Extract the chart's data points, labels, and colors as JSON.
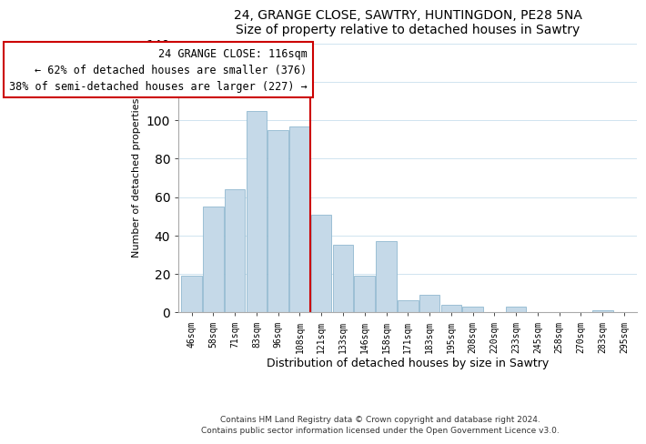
{
  "title": "24, GRANGE CLOSE, SAWTRY, HUNTINGDON, PE28 5NA",
  "subtitle": "Size of property relative to detached houses in Sawtry",
  "xlabel": "Distribution of detached houses by size in Sawtry",
  "ylabel": "Number of detached properties",
  "bar_color": "#c5d9e8",
  "bar_edge_color": "#90b8d0",
  "categories": [
    "46sqm",
    "58sqm",
    "71sqm",
    "83sqm",
    "96sqm",
    "108sqm",
    "121sqm",
    "133sqm",
    "146sqm",
    "158sqm",
    "171sqm",
    "183sqm",
    "195sqm",
    "208sqm",
    "220sqm",
    "233sqm",
    "245sqm",
    "258sqm",
    "270sqm",
    "283sqm",
    "295sqm"
  ],
  "values": [
    19,
    55,
    64,
    105,
    95,
    97,
    51,
    35,
    19,
    37,
    6,
    9,
    4,
    3,
    0,
    3,
    0,
    0,
    0,
    1,
    0
  ],
  "ylim": [
    0,
    140
  ],
  "yticks": [
    0,
    20,
    40,
    60,
    80,
    100,
    120,
    140
  ],
  "vline_index": 5.5,
  "vline_color": "#cc0000",
  "box_color": "#cc0000",
  "annotation_title": "24 GRANGE CLOSE: 116sqm",
  "annotation_line1": "← 62% of detached houses are smaller (376)",
  "annotation_line2": "38% of semi-detached houses are larger (227) →",
  "footnote1": "Contains HM Land Registry data © Crown copyright and database right 2024.",
  "footnote2": "Contains public sector information licensed under the Open Government Licence v3.0."
}
